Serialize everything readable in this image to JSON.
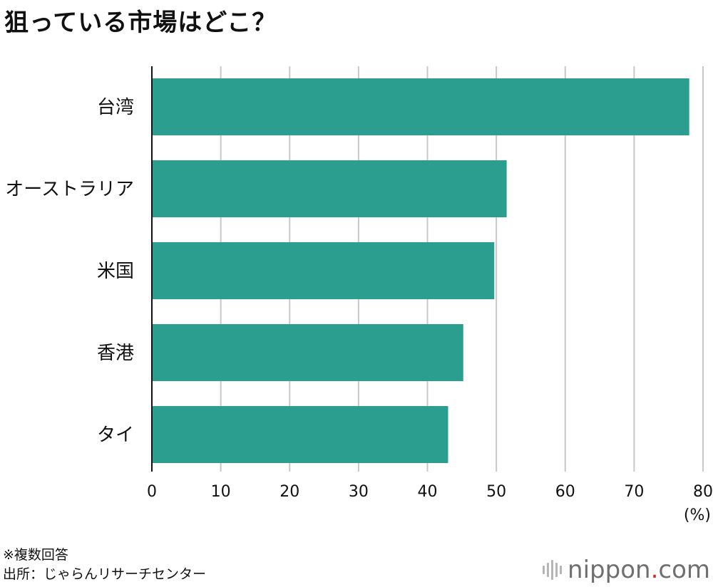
{
  "title": "狙っている市場はどこ？",
  "chart_data": {
    "type": "bar",
    "orientation": "horizontal",
    "categories": [
      "台湾",
      "オーストラリア",
      "米国",
      "香港",
      "タイ"
    ],
    "values": [
      78,
      51.5,
      49.7,
      45.2,
      43
    ],
    "xlim": [
      0,
      80
    ],
    "xticks": [
      "0",
      "10",
      "20",
      "30",
      "40",
      "50",
      "60",
      "70",
      "80"
    ],
    "xunit": "(%)",
    "grid": true,
    "bar_color": "#2c9e8f",
    "grid_color": "#c8c8c8"
  },
  "notes": {
    "multiple": "※複数回答",
    "source": "出所：じゃらんリサーチセンター"
  },
  "logo": {
    "name": "nippon",
    "dot": ".",
    "suffix": "com"
  }
}
